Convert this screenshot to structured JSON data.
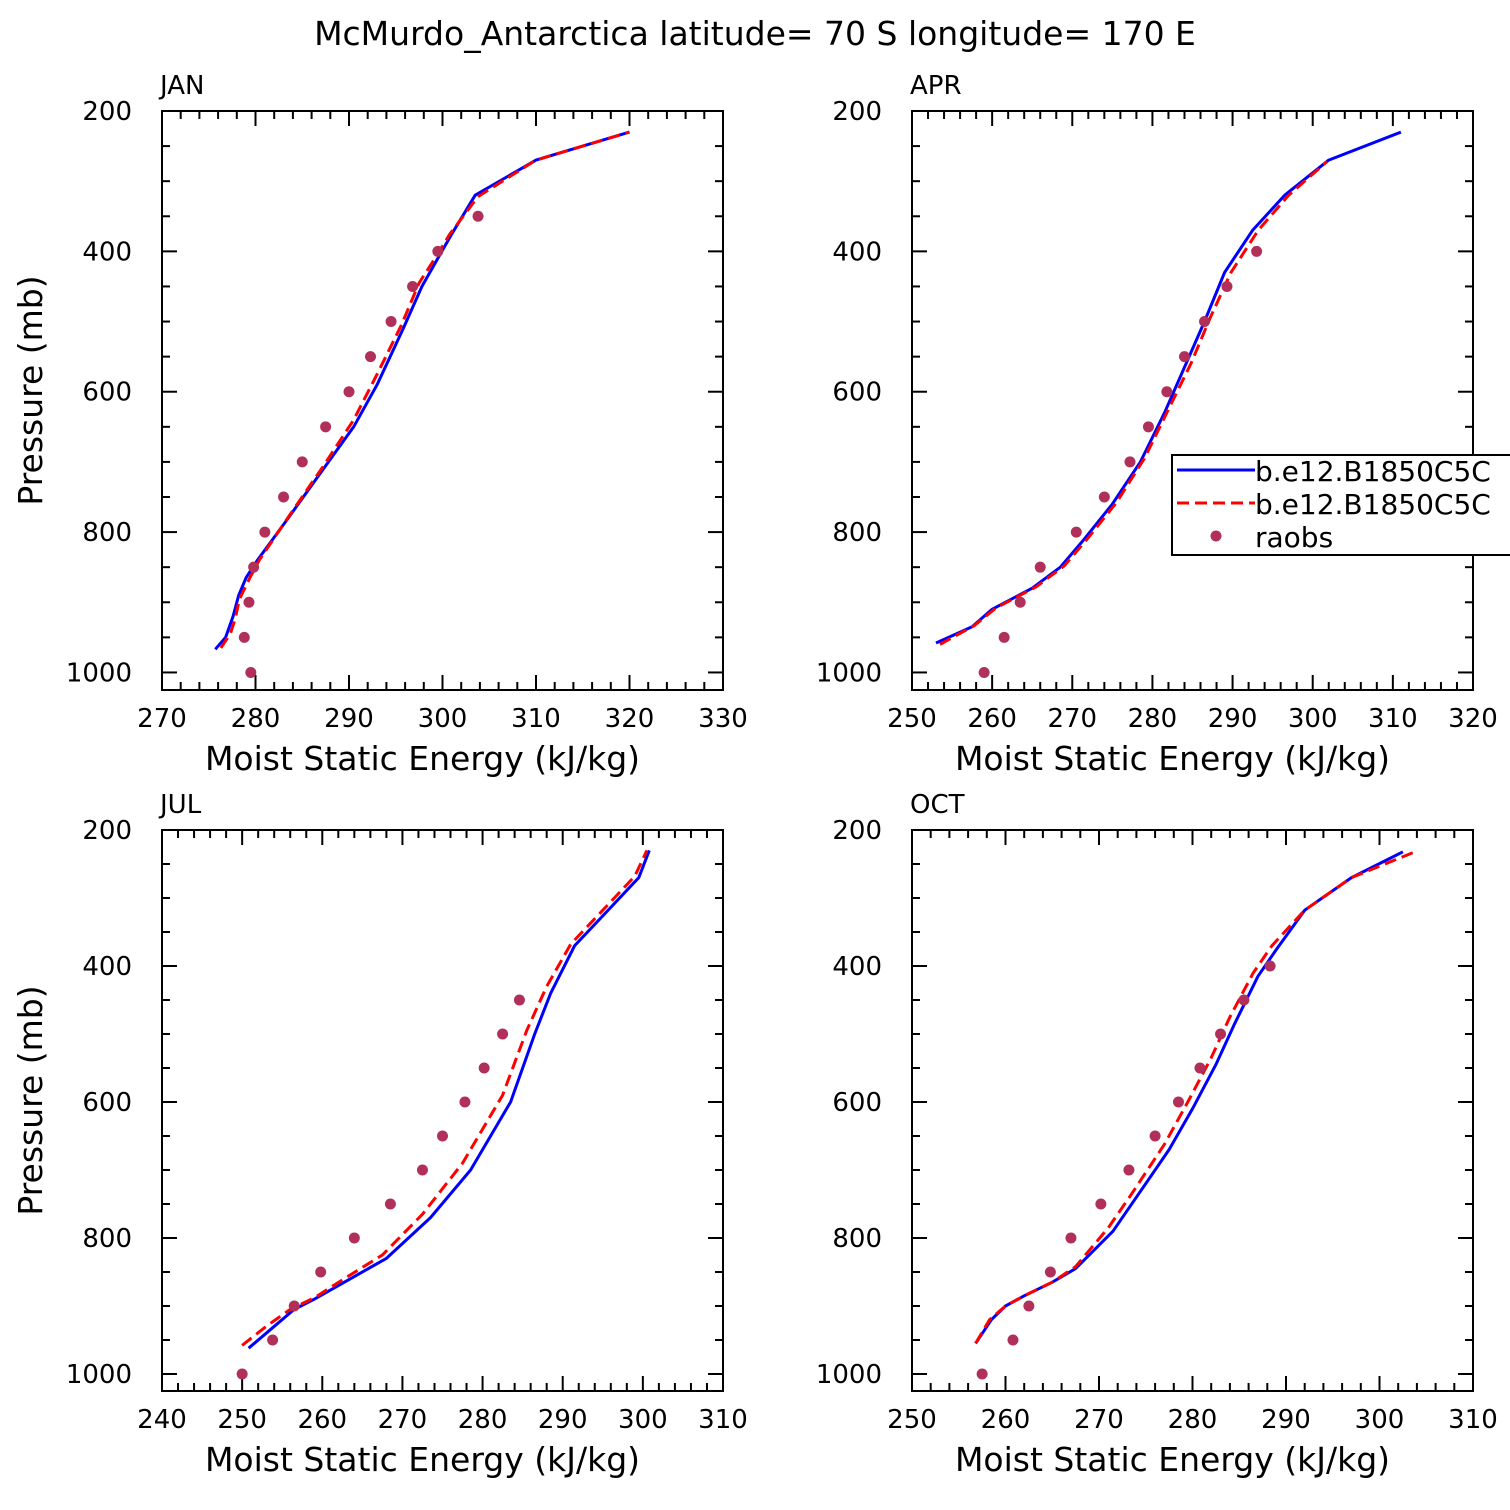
{
  "title": "McMurdo_Antarctica  latitude= 70 S longitude= 170 E",
  "colors": {
    "model1": "#0000ff",
    "model2": "#ff0000",
    "raobs": "#b0305a"
  },
  "legend": {
    "entries": [
      "b.e12.B1850C5C",
      "b.e12.B1850C5C",
      "raobs"
    ],
    "placement": "right-middle of APR panel (clipped at page edge)"
  },
  "chart_data": [
    {
      "type": "line",
      "panel_label": "JAN",
      "xlabel": "Moist Static Energy (kJ/kg)",
      "ylabel": "Pressure (mb)",
      "xlim": [
        270,
        330
      ],
      "ylim": [
        1025,
        200
      ],
      "xticks": [
        270,
        280,
        290,
        300,
        310,
        320,
        330
      ],
      "yticks": [
        200,
        400,
        600,
        800,
        1000
      ],
      "series": [
        {
          "type": "line",
          "style": "solid",
          "points": [
            [
              275.7,
              967
            ],
            [
              276.8,
              950
            ],
            [
              277.6,
              920
            ],
            [
              278.2,
              890
            ],
            [
              279.0,
              865
            ],
            [
              280.2,
              840
            ],
            [
              283.5,
              780
            ],
            [
              287.0,
              715
            ],
            [
              290.5,
              650
            ],
            [
              293.0,
              590
            ],
            [
              295.8,
              510
            ],
            [
              297.8,
              450
            ],
            [
              299.5,
              410
            ],
            [
              301.0,
              375
            ],
            [
              303.5,
              320
            ],
            [
              310.0,
              270
            ],
            [
              320.0,
              230
            ]
          ]
        },
        {
          "type": "line",
          "style": "dashed",
          "points": [
            [
              276.3,
              965
            ],
            [
              277.3,
              945
            ],
            [
              277.8,
              925
            ],
            [
              278.3,
              895
            ],
            [
              279.4,
              865
            ],
            [
              280.4,
              840
            ],
            [
              283.7,
              775
            ],
            [
              287.3,
              705
            ],
            [
              290.5,
              640
            ],
            [
              293.0,
              575
            ],
            [
              295.6,
              505
            ],
            [
              297.5,
              445
            ],
            [
              299.2,
              410
            ],
            [
              300.8,
              375
            ],
            [
              303.8,
              322
            ],
            [
              310.0,
              270
            ],
            [
              320.0,
              230
            ]
          ]
        },
        {
          "type": "scatter",
          "points": [
            [
              279.5,
              1000
            ],
            [
              278.8,
              950
            ],
            [
              279.3,
              900
            ],
            [
              279.8,
              850
            ],
            [
              281.0,
              800
            ],
            [
              283.0,
              750
            ],
            [
              285.0,
              700
            ],
            [
              287.5,
              650
            ],
            [
              290.0,
              600
            ],
            [
              292.3,
              550
            ],
            [
              294.5,
              500
            ],
            [
              296.8,
              450
            ],
            [
              299.5,
              400
            ],
            [
              303.8,
              350
            ]
          ]
        }
      ]
    },
    {
      "type": "line",
      "panel_label": "APR",
      "xlabel": "Moist Static Energy (kJ/kg)",
      "ylabel": "",
      "xlim": [
        250,
        320
      ],
      "ylim": [
        1025,
        200
      ],
      "xticks": [
        250,
        260,
        270,
        280,
        290,
        300,
        310,
        320
      ],
      "yticks": [
        200,
        400,
        600,
        800,
        1000
      ],
      "series": [
        {
          "type": "line",
          "style": "solid",
          "points": [
            [
              253.0,
              958
            ],
            [
              257.5,
              935
            ],
            [
              260.0,
              910
            ],
            [
              265.0,
              880
            ],
            [
              268.5,
              850
            ],
            [
              271.5,
              810
            ],
            [
              275.0,
              760
            ],
            [
              278.5,
              700
            ],
            [
              281.5,
              630
            ],
            [
              284.0,
              565
            ],
            [
              286.5,
              500
            ],
            [
              289.0,
              430
            ],
            [
              292.5,
              370
            ],
            [
              296.5,
              320
            ],
            [
              302.0,
              270
            ],
            [
              311.0,
              230
            ]
          ]
        },
        {
          "type": "line",
          "style": "dashed",
          "points": [
            [
              253.5,
              960
            ],
            [
              257.8,
              933
            ],
            [
              260.5,
              908
            ],
            [
              265.5,
              878
            ],
            [
              269.0,
              848
            ],
            [
              272.0,
              808
            ],
            [
              275.5,
              758
            ],
            [
              279.0,
              695
            ],
            [
              282.0,
              625
            ],
            [
              284.8,
              560
            ],
            [
              287.2,
              495
            ],
            [
              289.8,
              430
            ],
            [
              293.2,
              370
            ],
            [
              297.0,
              320
            ],
            [
              301.8,
              272
            ]
          ]
        },
        {
          "type": "scatter",
          "points": [
            [
              259.0,
              1000
            ],
            [
              261.5,
              950
            ],
            [
              263.5,
              900
            ],
            [
              266.0,
              850
            ],
            [
              270.5,
              800
            ],
            [
              274.0,
              750
            ],
            [
              277.2,
              700
            ],
            [
              279.5,
              650
            ],
            [
              281.8,
              600
            ],
            [
              284.0,
              550
            ],
            [
              286.5,
              500
            ],
            [
              289.3,
              450
            ],
            [
              293.0,
              400
            ]
          ]
        }
      ]
    },
    {
      "type": "line",
      "panel_label": "JUL",
      "xlabel": "Moist Static Energy (kJ/kg)",
      "ylabel": "Pressure (mb)",
      "xlim": [
        240,
        310
      ],
      "ylim": [
        1025,
        200
      ],
      "xticks": [
        240,
        250,
        260,
        270,
        280,
        290,
        300,
        310
      ],
      "yticks": [
        200,
        400,
        600,
        800,
        1000
      ],
      "series": [
        {
          "type": "line",
          "style": "solid",
          "points": [
            [
              250.8,
              962
            ],
            [
              253.5,
              935
            ],
            [
              256.5,
              905
            ],
            [
              259.0,
              890
            ],
            [
              263.5,
              860
            ],
            [
              268.0,
              830
            ],
            [
              273.5,
              770
            ],
            [
              278.5,
              700
            ],
            [
              283.5,
              600
            ],
            [
              286.5,
              500
            ],
            [
              288.5,
              440
            ],
            [
              291.5,
              370
            ],
            [
              295.5,
              320
            ],
            [
              299.5,
              270
            ],
            [
              300.8,
              230
            ]
          ]
        },
        {
          "type": "line",
          "style": "dashed",
          "points": [
            [
              250.0,
              958
            ],
            [
              253.0,
              930
            ],
            [
              256.0,
              905
            ],
            [
              259.0,
              888
            ],
            [
              263.0,
              858
            ],
            [
              267.5,
              825
            ],
            [
              272.5,
              765
            ],
            [
              277.5,
              690
            ],
            [
              282.5,
              590
            ],
            [
              285.5,
              495
            ],
            [
              288.0,
              430
            ],
            [
              291.0,
              368
            ],
            [
              295.0,
              318
            ],
            [
              299.0,
              268
            ],
            [
              300.5,
              230
            ]
          ]
        },
        {
          "type": "scatter",
          "points": [
            [
              250.0,
              1000
            ],
            [
              253.8,
              950
            ],
            [
              256.5,
              900
            ],
            [
              259.8,
              850
            ],
            [
              264.0,
              800
            ],
            [
              268.5,
              750
            ],
            [
              272.5,
              700
            ],
            [
              275.0,
              650
            ],
            [
              277.8,
              600
            ],
            [
              280.2,
              550
            ],
            [
              282.5,
              500
            ],
            [
              284.6,
              450
            ]
          ]
        }
      ]
    },
    {
      "type": "line",
      "panel_label": "OCT",
      "xlabel": "Moist Static Energy (kJ/kg)",
      "ylabel": "",
      "xlim": [
        250,
        310
      ],
      "ylim": [
        1025,
        200
      ],
      "xticks": [
        250,
        260,
        270,
        280,
        290,
        300,
        310
      ],
      "yticks": [
        200,
        400,
        600,
        800,
        1000
      ],
      "series": [
        {
          "type": "line",
          "style": "solid",
          "points": [
            [
              256.8,
              955
            ],
            [
              258.5,
              920
            ],
            [
              260.0,
              900
            ],
            [
              262.0,
              885
            ],
            [
              265.0,
              865
            ],
            [
              267.5,
              845
            ],
            [
              271.5,
              790
            ],
            [
              274.0,
              740
            ],
            [
              277.5,
              670
            ],
            [
              280.0,
              610
            ],
            [
              282.5,
              545
            ],
            [
              284.5,
              485
            ],
            [
              287.0,
              415
            ],
            [
              289.0,
              375
            ],
            [
              292.0,
              318
            ],
            [
              297.0,
              270
            ],
            [
              302.5,
              232
            ]
          ]
        },
        {
          "type": "line",
          "style": "dashed",
          "points": [
            [
              256.8,
              955
            ],
            [
              258.3,
              920
            ],
            [
              260.0,
              900
            ],
            [
              262.0,
              885
            ],
            [
              265.0,
              865
            ],
            [
              267.5,
              842
            ],
            [
              271.0,
              785
            ],
            [
              273.5,
              735
            ],
            [
              277.0,
              662
            ],
            [
              279.5,
              600
            ],
            [
              282.0,
              535
            ],
            [
              284.0,
              475
            ],
            [
              286.5,
              410
            ],
            [
              288.5,
              370
            ],
            [
              292.0,
              318
            ],
            [
              297.0,
              270
            ],
            [
              303.8,
              232
            ]
          ]
        },
        {
          "type": "scatter",
          "points": [
            [
              257.5,
              1000
            ],
            [
              260.8,
              950
            ],
            [
              262.5,
              900
            ],
            [
              264.8,
              850
            ],
            [
              267.0,
              800
            ],
            [
              270.2,
              750
            ],
            [
              273.2,
              700
            ],
            [
              276.0,
              650
            ],
            [
              278.5,
              600
            ],
            [
              280.8,
              550
            ],
            [
              283.0,
              500
            ],
            [
              285.5,
              450
            ],
            [
              288.3,
              400
            ]
          ]
        }
      ]
    }
  ]
}
